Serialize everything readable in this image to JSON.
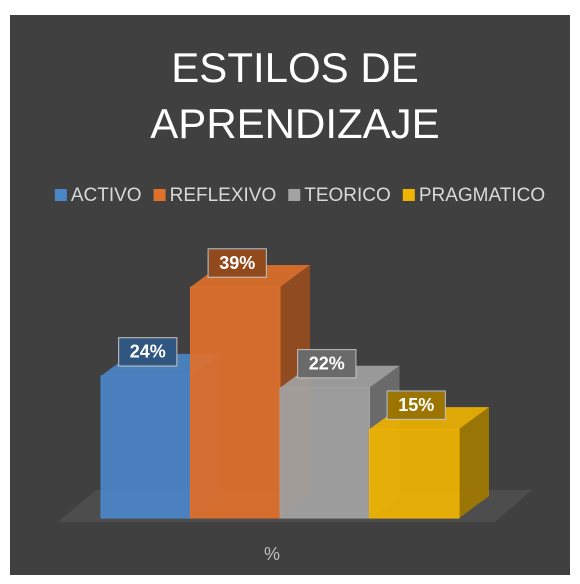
{
  "chart_data": {
    "type": "bar",
    "title": "ESTILOS DE APRENDIZAJE",
    "categories": [
      "%"
    ],
    "series": [
      {
        "name": "ACTIVO",
        "color": "#4a86c8",
        "values": [
          24
        ],
        "value_labels": [
          "24%"
        ]
      },
      {
        "name": "REFLEXIVO",
        "color": "#e0702a",
        "values": [
          39
        ],
        "value_labels": [
          "39%"
        ]
      },
      {
        "name": "TEORICO",
        "color": "#a3a3a3",
        "values": [
          22
        ],
        "value_labels": [
          "22%"
        ]
      },
      {
        "name": "PRAGMATICO",
        "color": "#f0b400",
        "values": [
          15
        ],
        "value_labels": [
          "15%"
        ]
      }
    ],
    "legend": "top"
  }
}
